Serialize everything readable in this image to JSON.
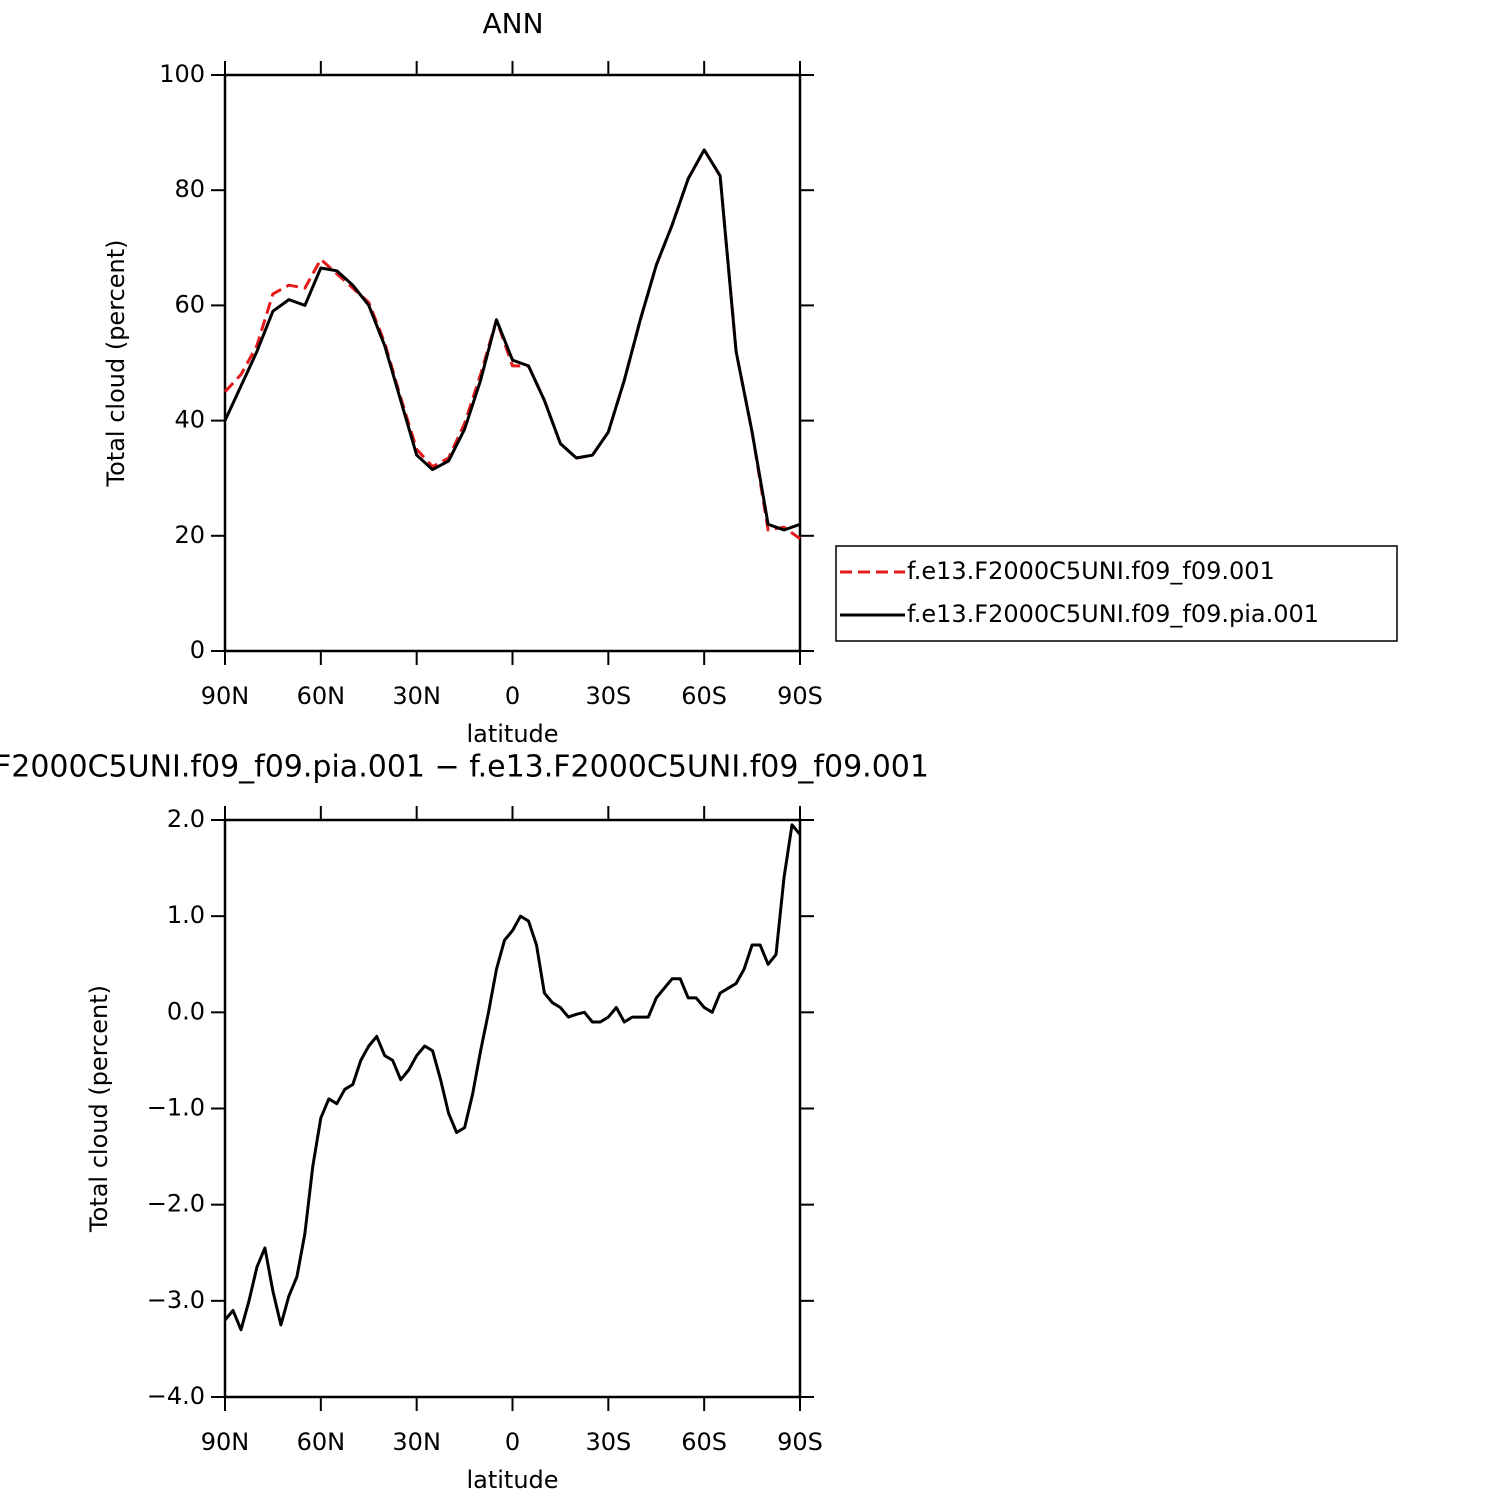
{
  "chart_data": [
    {
      "type": "line",
      "title": "ANN",
      "xlabel": "latitude",
      "ylabel": "Total cloud (percent)",
      "xlim": [
        90,
        -90
      ],
      "ylim": [
        0,
        100
      ],
      "xticks": [
        {
          "value": 90,
          "label": "90N"
        },
        {
          "value": 60,
          "label": "60N"
        },
        {
          "value": 30,
          "label": "30N"
        },
        0,
        {
          "value": -30,
          "label": "30S"
        },
        {
          "value": -60,
          "label": "60S"
        },
        {
          "value": -90,
          "label": "90S"
        }
      ],
      "yticks": [
        0,
        20,
        40,
        60,
        80,
        100
      ],
      "x": [
        90,
        85,
        80,
        75,
        70,
        65,
        60,
        55,
        50,
        45,
        40,
        35,
        30,
        25,
        20,
        15,
        10,
        5,
        0,
        -5,
        -10,
        -15,
        -20,
        -25,
        -30,
        -35,
        -40,
        -45,
        -50,
        -55,
        -60,
        -65,
        -70,
        -75,
        -80,
        -85,
        -90
      ],
      "series": [
        {
          "name": "f.e13.F2000C5UNI.f09_f09.001",
          "color": "#e41a1c",
          "dashed": true,
          "values": [
            45,
            48,
            53,
            62,
            63.5,
            63,
            68,
            65.5,
            63,
            60.5,
            53.5,
            44,
            35,
            32,
            33.5,
            39.5,
            48,
            57.5,
            49.5,
            49.5,
            43.5,
            36,
            33.5,
            34,
            38,
            47,
            57.5,
            67,
            74,
            82,
            87,
            82.5,
            52,
            38,
            21,
            21.5,
            19.5
          ]
        },
        {
          "name": "f.e13.F2000C5UNI.f09_f09.pia.001",
          "color": "#000000",
          "dashed": false,
          "values": [
            40,
            46,
            52,
            59,
            61,
            60,
            66.5,
            66,
            63.5,
            60,
            53,
            43.5,
            34,
            31.5,
            33,
            38.5,
            47,
            57.5,
            50.5,
            49.5,
            43.5,
            36,
            33.5,
            34,
            38,
            47,
            57.5,
            67,
            74,
            82,
            87,
            82.5,
            52,
            38,
            22,
            21,
            22
          ]
        }
      ]
    },
    {
      "type": "line",
      "title": "F2000C5UNI.f09_f09.pia.001 − f.e13.F2000C5UNI.f09_f09.001",
      "xlabel": "latitude",
      "ylabel": "Total cloud (percent)",
      "xlim": [
        90,
        -90
      ],
      "ylim": [
        -4,
        2
      ],
      "xticks": [
        {
          "value": 90,
          "label": "90N"
        },
        {
          "value": 60,
          "label": "60N"
        },
        {
          "value": 30,
          "label": "30N"
        },
        0,
        {
          "value": -30,
          "label": "30S"
        },
        {
          "value": -60,
          "label": "60S"
        },
        {
          "value": -90,
          "label": "90S"
        }
      ],
      "yticks": [
        {
          "value": -4,
          "label": "−4.0"
        },
        {
          "value": -3,
          "label": "−3.0"
        },
        {
          "value": -2,
          "label": "−2.0"
        },
        {
          "value": -1,
          "label": "−1.0"
        },
        {
          "value": 0,
          "label": "0.0"
        },
        {
          "value": 1,
          "label": "1.0"
        },
        {
          "value": 2,
          "label": "2.0"
        }
      ],
      "x": [
        90,
        87.5,
        85,
        82.5,
        80,
        77.5,
        75,
        72.5,
        70,
        67.5,
        65,
        62.5,
        60,
        57.5,
        55,
        52.5,
        50,
        47.5,
        45,
        42.5,
        40,
        37.5,
        35,
        32.5,
        30,
        27.5,
        25,
        22.5,
        20,
        17.5,
        15,
        12.5,
        10,
        7.5,
        5,
        2.5,
        0,
        -2.5,
        -5,
        -7.5,
        -10,
        -12.5,
        -15,
        -17.5,
        -20,
        -22.5,
        -25,
        -27.5,
        -30,
        -32.5,
        -35,
        -37.5,
        -40,
        -42.5,
        -45,
        -47.5,
        -50,
        -52.5,
        -55,
        -57.5,
        -60,
        -62.5,
        -65,
        -67.5,
        -70,
        -72.5,
        -75,
        -77.5,
        -80,
        -82.5,
        -85,
        -87.5,
        -90
      ],
      "series": [
        {
          "color": "#000000",
          "dashed": false,
          "values": [
            -3.2,
            -3.1,
            -3.3,
            -3.0,
            -2.65,
            -2.45,
            -2.9,
            -3.25,
            -2.95,
            -2.75,
            -2.3,
            -1.6,
            -1.1,
            -0.9,
            -0.95,
            -0.8,
            -0.75,
            -0.5,
            -0.35,
            -0.25,
            -0.45,
            -0.5,
            -0.7,
            -0.6,
            -0.45,
            -0.35,
            -0.4,
            -0.7,
            -1.05,
            -1.25,
            -1.2,
            -0.85,
            -0.4,
            0.0,
            0.45,
            0.75,
            0.85,
            1.0,
            0.95,
            0.7,
            0.2,
            0.1,
            0.05,
            -0.05,
            -0.02,
            0.0,
            -0.1,
            -0.1,
            -0.05,
            0.05,
            -0.1,
            -0.05,
            -0.05,
            -0.05,
            0.15,
            0.25,
            0.35,
            0.35,
            0.15,
            0.15,
            0.05,
            0.0,
            0.2,
            0.25,
            0.3,
            0.45,
            0.7,
            0.7,
            0.5,
            0.6,
            1.4,
            1.95,
            1.85
          ]
        }
      ]
    }
  ]
}
